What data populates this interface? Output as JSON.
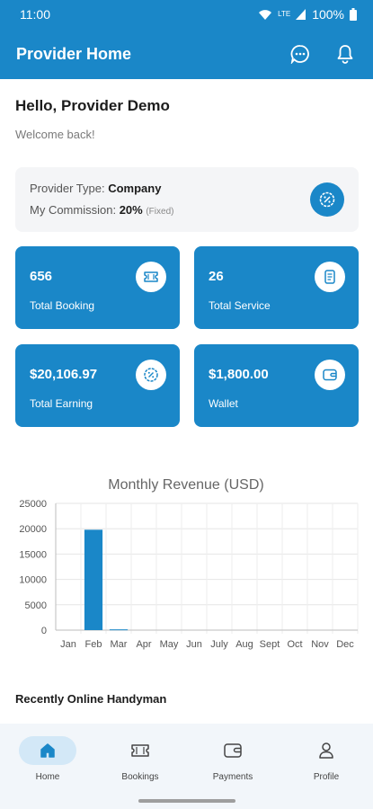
{
  "status_bar": {
    "time": "11:00",
    "battery": "100%"
  },
  "app_bar": {
    "title": "Provider Home"
  },
  "greeting": {
    "title": "Hello, Provider Demo",
    "subtitle": "Welcome back!"
  },
  "provider_info": {
    "type_label": "Provider Type: ",
    "type_value": "Company",
    "commission_label": "My Commission: ",
    "commission_value": "20%",
    "commission_note": "(Fixed)"
  },
  "stats": [
    {
      "value": "656",
      "label": "Total Booking",
      "icon": "ticket-icon"
    },
    {
      "value": "26",
      "label": "Total Service",
      "icon": "document-icon"
    },
    {
      "value": "$20,106.97",
      "label": "Total Earning",
      "icon": "percent-badge-icon"
    },
    {
      "value": "$1,800.00",
      "label": "Wallet",
      "icon": "wallet-icon"
    }
  ],
  "chart_data": {
    "type": "bar",
    "title": "Monthly Revenue (USD)",
    "categories": [
      "Jan",
      "Feb",
      "Mar",
      "Apr",
      "May",
      "Jun",
      "July",
      "Aug",
      "Sept",
      "Oct",
      "Nov",
      "Dec"
    ],
    "values": [
      0,
      19800,
      150,
      0,
      0,
      0,
      0,
      0,
      0,
      0,
      0,
      0
    ],
    "y_ticks": [
      "0",
      "5000",
      "10000",
      "15000",
      "20000",
      "25000"
    ],
    "ylim": [
      0,
      25000
    ],
    "grid": true,
    "bar_color": "#1a87c8"
  },
  "recent": {
    "title": "Recently Online Handyman"
  },
  "bottom_nav": [
    {
      "label": "Home",
      "icon": "home-icon",
      "active": true
    },
    {
      "label": "Bookings",
      "icon": "ticket-icon",
      "active": false
    },
    {
      "label": "Payments",
      "icon": "wallet-icon",
      "active": false
    },
    {
      "label": "Profile",
      "icon": "person-icon",
      "active": false
    }
  ],
  "colors": {
    "primary": "#1a87c8",
    "card_bg": "#f4f5f7",
    "nav_bg": "#f2f6fa",
    "nav_active": "#d3e8f7"
  }
}
